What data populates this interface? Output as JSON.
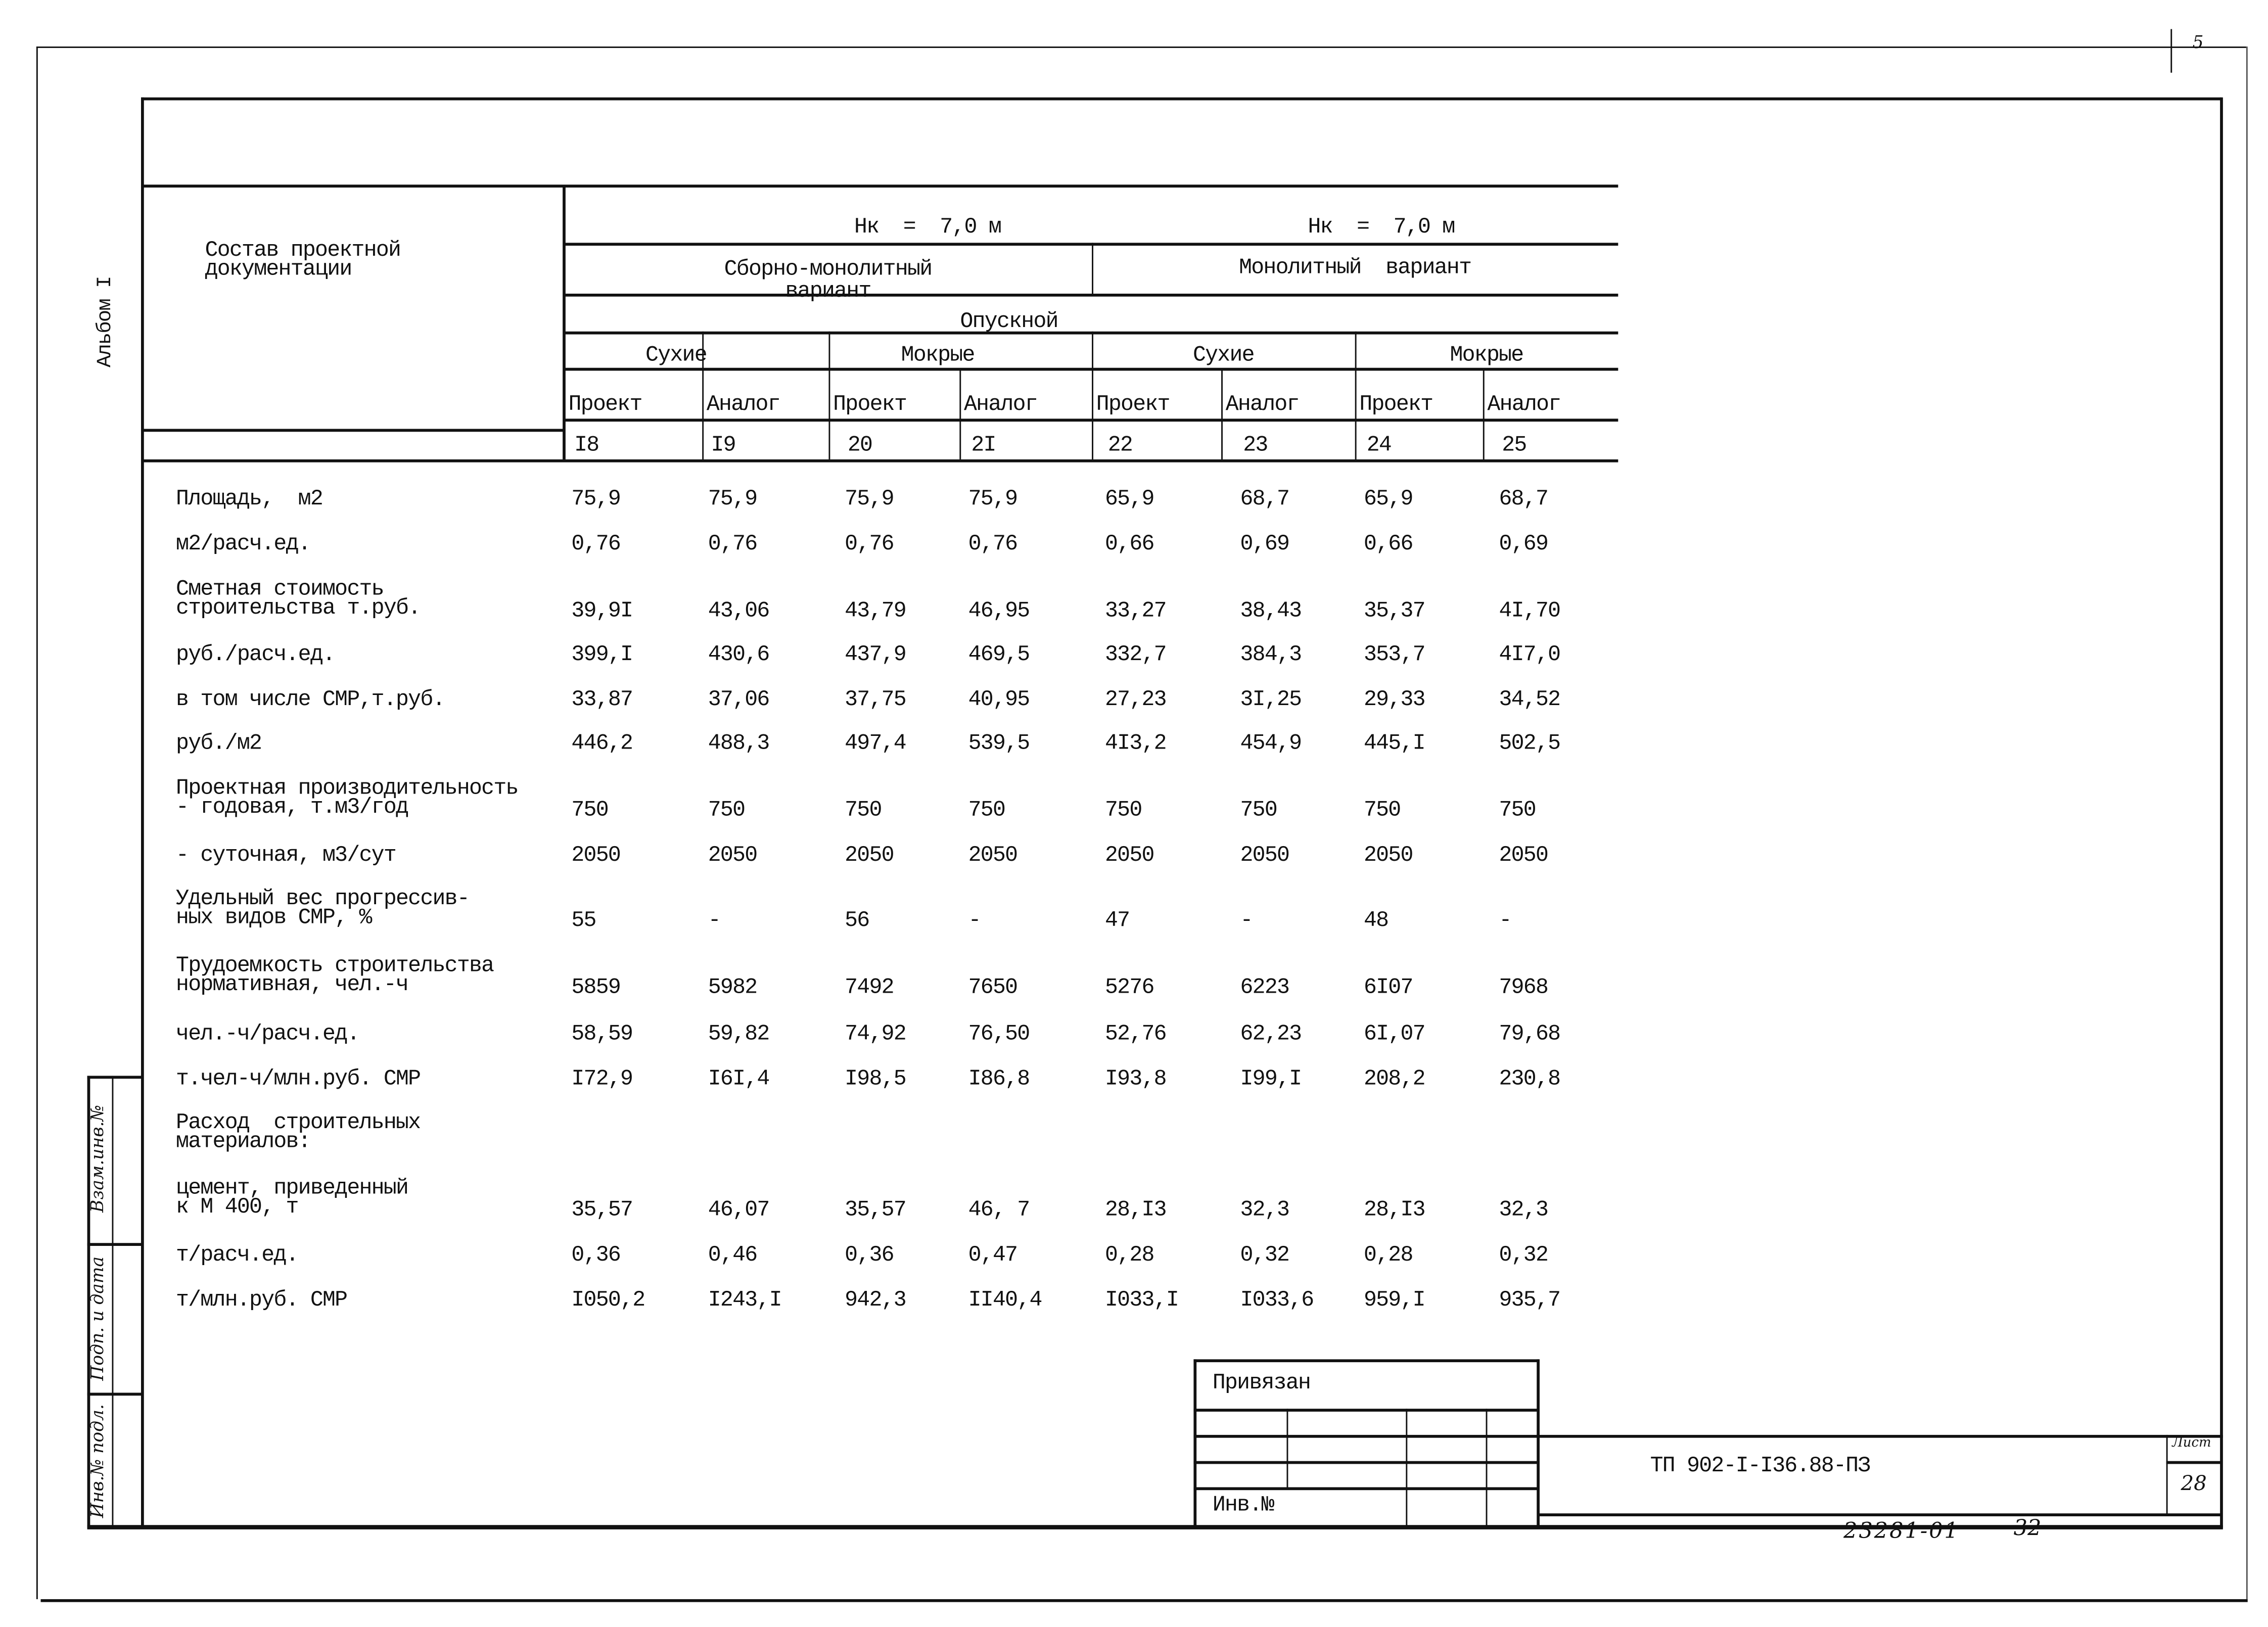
{
  "side": {
    "album_label": "Альбом I",
    "stamp_fields": [
      "Взам.инв.№",
      "Подп. и дата",
      "Инв.№ подл."
    ]
  },
  "corner_mark": "5",
  "table": {
    "header_left": "Состав проектной\nдокументации",
    "groups": [
      {
        "height": "Hк  =  7,0 м",
        "variant": "Сборно-монолитный\nвариант"
      },
      {
        "height": "Hк  =  7,0 м",
        "variant": "Монолитный  вариант"
      }
    ],
    "type_label": "Опускной",
    "subgroups": [
      "Сухие",
      "Мокрые",
      "Сухие",
      "Мокрые"
    ],
    "columns": [
      "Проект",
      "Аналог",
      "Проект",
      "Аналог",
      "Проект",
      "Аналог",
      "Проект",
      "Аналог"
    ],
    "column_numbers": [
      "I8",
      "I9",
      "20",
      "2I",
      "22",
      "23",
      "24",
      "25"
    ],
    "rows": [
      {
        "label": "Площадь,  м2",
        "values": [
          "75,9",
          "75,9",
          "75,9",
          "75,9",
          "65,9",
          "68,7",
          "65,9",
          "68,7"
        ]
      },
      {
        "label": "м2/расч.ед.",
        "values": [
          "0,76",
          "0,76",
          "0,76",
          "0,76",
          "0,66",
          "0,69",
          "0,66",
          "0,69"
        ]
      },
      {
        "label": "Сметная стоимость\nстроительства т.руб.",
        "values": [
          "39,9I",
          "43,06",
          "43,79",
          "46,95",
          "33,27",
          "38,43",
          "35,37",
          "4I,70"
        ]
      },
      {
        "label": "руб./расч.ед.",
        "values": [
          "399,I",
          "430,6",
          "437,9",
          "469,5",
          "332,7",
          "384,3",
          "353,7",
          "4I7,0"
        ]
      },
      {
        "label": "в том числе СМР,т.руб.",
        "values": [
          "33,87",
          "37,06",
          "37,75",
          "40,95",
          "27,23",
          "3I,25",
          "29,33",
          "34,52"
        ]
      },
      {
        "label": "руб./м2",
        "values": [
          "446,2",
          "488,3",
          "497,4",
          "539,5",
          "4I3,2",
          "454,9",
          "445,I",
          "502,5"
        ]
      },
      {
        "label": "Проектная производительность\n- годовая, т.м3/год",
        "values": [
          "750",
          "750",
          "750",
          "750",
          "750",
          "750",
          "750",
          "750"
        ]
      },
      {
        "label": "- суточная, м3/сут",
        "values": [
          "2050",
          "2050",
          "2050",
          "2050",
          "2050",
          "2050",
          "2050",
          "2050"
        ]
      },
      {
        "label": "Удельный вес прогрессив-\nных видов СМР, %",
        "values": [
          "55",
          "-",
          "56",
          "-",
          "47",
          "-",
          "48",
          "-"
        ]
      },
      {
        "label": "Трудоемкость строительства\nнормативная, чел.-ч",
        "values": [
          "5859",
          "5982",
          "7492",
          "7650",
          "5276",
          "6223",
          "6I07",
          "7968"
        ]
      },
      {
        "label": "чел.-ч/расч.ед.",
        "values": [
          "58,59",
          "59,82",
          "74,92",
          "76,50",
          "52,76",
          "62,23",
          "6I,07",
          "79,68"
        ]
      },
      {
        "label": "т.чел-ч/млн.руб. СМР",
        "values": [
          "I72,9",
          "I6I,4",
          "I98,5",
          "I86,8",
          "I93,8",
          "I99,I",
          "208,2",
          "230,8"
        ]
      },
      {
        "label": "Расход  строительных\nматериалов:",
        "values": []
      },
      {
        "label": "цемент, приведенный\nк М 400, т",
        "values": [
          "35,57",
          "46,07",
          "35,57",
          "46, 7",
          "28,I3",
          "32,3",
          "28,I3",
          "32,3"
        ]
      },
      {
        "label": "т/расч.ед.",
        "values": [
          "0,36",
          "0,46",
          "0,36",
          "0,47",
          "0,28",
          "0,32",
          "0,28",
          "0,32"
        ]
      },
      {
        "label": "т/млн.руб. СМР",
        "values": [
          "I050,2",
          "I243,I",
          "942,3",
          "II40,4",
          "I033,I",
          "I033,6",
          "959,I",
          "935,7"
        ]
      }
    ]
  },
  "title_block": {
    "bound_label": "Привязан",
    "inv_label": "Инв.№",
    "doc_code": "ТП 902-I-I36.88-ПЗ",
    "sheet_label": "Лист",
    "sheet_number": "28"
  },
  "footer_handwritten": {
    "archive_number": "23281-01",
    "page": "32"
  }
}
